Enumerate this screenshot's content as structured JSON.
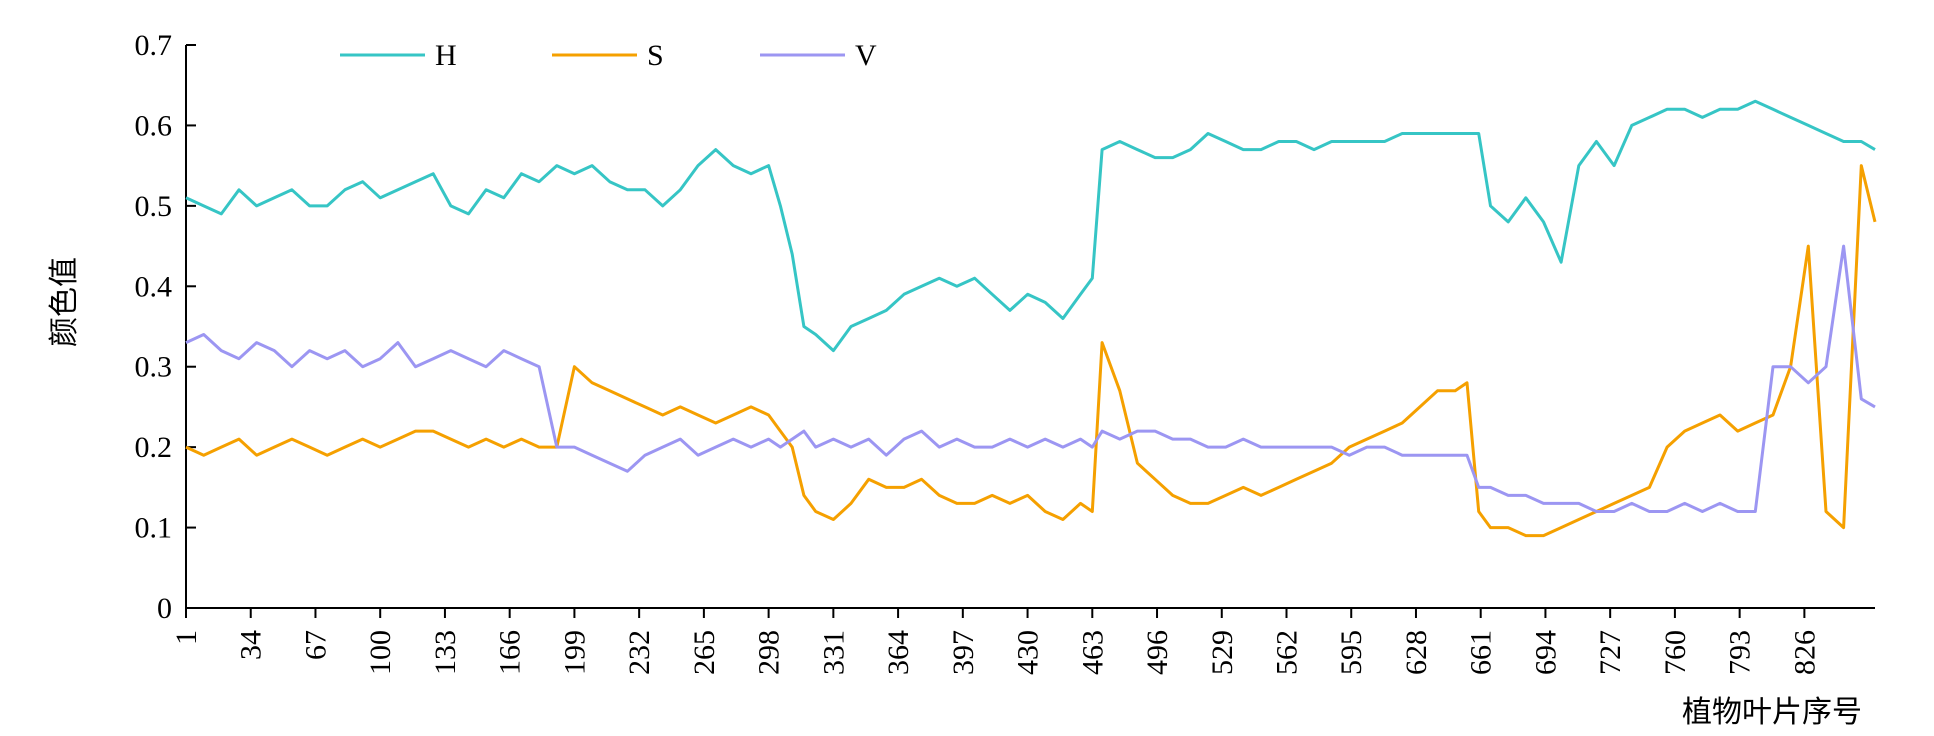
{
  "chart_data": {
    "type": "line",
    "title": "",
    "xlabel": "植物叶片序号",
    "ylabel": "颜色值",
    "ylim": [
      0,
      0.7
    ],
    "yticks": [
      "0",
      "0.1",
      "0.2",
      "0.3",
      "0.4",
      "0.5",
      "0.6",
      "0.7"
    ],
    "xlim": [
      1,
      862
    ],
    "xticks": [
      1,
      34,
      67,
      100,
      133,
      166,
      199,
      232,
      265,
      298,
      331,
      364,
      397,
      430,
      463,
      496,
      529,
      562,
      595,
      628,
      661,
      694,
      727,
      760,
      793,
      826
    ],
    "grid": false,
    "legend_position": "top-left",
    "series": [
      {
        "name": "H",
        "color": "#36C5C5",
        "x": [
          1,
          10,
          19,
          28,
          37,
          46,
          55,
          64,
          73,
          82,
          91,
          100,
          109,
          118,
          127,
          136,
          145,
          154,
          163,
          172,
          181,
          190,
          199,
          208,
          217,
          226,
          235,
          244,
          253,
          262,
          271,
          280,
          289,
          298,
          304,
          310,
          316,
          322,
          331,
          340,
          349,
          358,
          367,
          376,
          385,
          394,
          403,
          412,
          421,
          430,
          439,
          448,
          457,
          463,
          468,
          477,
          486,
          495,
          504,
          513,
          522,
          531,
          540,
          549,
          558,
          567,
          576,
          585,
          594,
          603,
          612,
          621,
          630,
          639,
          648,
          654,
          660,
          666,
          675,
          684,
          693,
          702,
          711,
          720,
          729,
          738,
          747,
          756,
          765,
          774,
          783,
          792,
          801,
          810,
          819,
          828,
          837,
          846,
          855,
          862
        ],
        "values": [
          0.51,
          0.5,
          0.49,
          0.52,
          0.5,
          0.51,
          0.52,
          0.5,
          0.5,
          0.52,
          0.53,
          0.51,
          0.52,
          0.53,
          0.54,
          0.5,
          0.49,
          0.52,
          0.51,
          0.54,
          0.53,
          0.55,
          0.54,
          0.55,
          0.53,
          0.52,
          0.52,
          0.5,
          0.52,
          0.55,
          0.57,
          0.55,
          0.54,
          0.55,
          0.5,
          0.44,
          0.35,
          0.34,
          0.32,
          0.35,
          0.36,
          0.37,
          0.39,
          0.4,
          0.41,
          0.4,
          0.41,
          0.39,
          0.37,
          0.39,
          0.38,
          0.36,
          0.39,
          0.41,
          0.57,
          0.58,
          0.57,
          0.56,
          0.56,
          0.57,
          0.59,
          0.58,
          0.57,
          0.57,
          0.58,
          0.58,
          0.57,
          0.58,
          0.58,
          0.58,
          0.58,
          0.59,
          0.59,
          0.59,
          0.59,
          0.59,
          0.59,
          0.5,
          0.48,
          0.51,
          0.48,
          0.43,
          0.55,
          0.58,
          0.55,
          0.6,
          0.61,
          0.62,
          0.62,
          0.61,
          0.62,
          0.62,
          0.63,
          0.62,
          0.61,
          0.6,
          0.59,
          0.58,
          0.58,
          0.57
        ]
      },
      {
        "name": "S",
        "color": "#F5A000",
        "x": [
          1,
          10,
          19,
          28,
          37,
          46,
          55,
          64,
          73,
          82,
          91,
          100,
          109,
          118,
          127,
          136,
          145,
          154,
          163,
          172,
          181,
          190,
          199,
          208,
          217,
          226,
          235,
          244,
          253,
          262,
          271,
          280,
          289,
          298,
          304,
          310,
          316,
          322,
          331,
          340,
          349,
          358,
          367,
          376,
          385,
          394,
          403,
          412,
          421,
          430,
          439,
          448,
          457,
          463,
          468,
          477,
          486,
          495,
          504,
          513,
          522,
          531,
          540,
          549,
          558,
          567,
          576,
          585,
          594,
          603,
          612,
          621,
          630,
          639,
          648,
          654,
          660,
          666,
          675,
          684,
          693,
          702,
          711,
          720,
          729,
          738,
          747,
          756,
          765,
          774,
          783,
          792,
          801,
          810,
          819,
          828,
          837,
          846,
          855,
          862
        ],
        "values": [
          0.2,
          0.19,
          0.2,
          0.21,
          0.19,
          0.2,
          0.21,
          0.2,
          0.19,
          0.2,
          0.21,
          0.2,
          0.21,
          0.22,
          0.22,
          0.21,
          0.2,
          0.21,
          0.2,
          0.21,
          0.2,
          0.2,
          0.3,
          0.28,
          0.27,
          0.26,
          0.25,
          0.24,
          0.25,
          0.24,
          0.23,
          0.24,
          0.25,
          0.24,
          0.22,
          0.2,
          0.14,
          0.12,
          0.11,
          0.13,
          0.16,
          0.15,
          0.15,
          0.16,
          0.14,
          0.13,
          0.13,
          0.14,
          0.13,
          0.14,
          0.12,
          0.11,
          0.13,
          0.12,
          0.33,
          0.27,
          0.18,
          0.16,
          0.14,
          0.13,
          0.13,
          0.14,
          0.15,
          0.14,
          0.15,
          0.16,
          0.17,
          0.18,
          0.2,
          0.21,
          0.22,
          0.23,
          0.25,
          0.27,
          0.27,
          0.28,
          0.12,
          0.1,
          0.1,
          0.09,
          0.09,
          0.1,
          0.11,
          0.12,
          0.13,
          0.14,
          0.15,
          0.2,
          0.22,
          0.23,
          0.24,
          0.22,
          0.23,
          0.24,
          0.3,
          0.45,
          0.12,
          0.1,
          0.55,
          0.48
        ]
      },
      {
        "name": "V",
        "color": "#9C96F2",
        "x": [
          1,
          10,
          19,
          28,
          37,
          46,
          55,
          64,
          73,
          82,
          91,
          100,
          109,
          118,
          127,
          136,
          145,
          154,
          163,
          172,
          181,
          190,
          199,
          208,
          217,
          226,
          235,
          244,
          253,
          262,
          271,
          280,
          289,
          298,
          304,
          310,
          316,
          322,
          331,
          340,
          349,
          358,
          367,
          376,
          385,
          394,
          403,
          412,
          421,
          430,
          439,
          448,
          457,
          463,
          468,
          477,
          486,
          495,
          504,
          513,
          522,
          531,
          540,
          549,
          558,
          567,
          576,
          585,
          594,
          603,
          612,
          621,
          630,
          639,
          648,
          654,
          660,
          666,
          675,
          684,
          693,
          702,
          711,
          720,
          729,
          738,
          747,
          756,
          765,
          774,
          783,
          792,
          801,
          810,
          819,
          828,
          837,
          846,
          855,
          862
        ],
        "values": [
          0.33,
          0.34,
          0.32,
          0.31,
          0.33,
          0.32,
          0.3,
          0.32,
          0.31,
          0.32,
          0.3,
          0.31,
          0.33,
          0.3,
          0.31,
          0.32,
          0.31,
          0.3,
          0.32,
          0.31,
          0.3,
          0.2,
          0.2,
          0.19,
          0.18,
          0.17,
          0.19,
          0.2,
          0.21,
          0.19,
          0.2,
          0.21,
          0.2,
          0.21,
          0.2,
          0.21,
          0.22,
          0.2,
          0.21,
          0.2,
          0.21,
          0.19,
          0.21,
          0.22,
          0.2,
          0.21,
          0.2,
          0.2,
          0.21,
          0.2,
          0.21,
          0.2,
          0.21,
          0.2,
          0.22,
          0.21,
          0.22,
          0.22,
          0.21,
          0.21,
          0.2,
          0.2,
          0.21,
          0.2,
          0.2,
          0.2,
          0.2,
          0.2,
          0.19,
          0.2,
          0.2,
          0.19,
          0.19,
          0.19,
          0.19,
          0.19,
          0.15,
          0.15,
          0.14,
          0.14,
          0.13,
          0.13,
          0.13,
          0.12,
          0.12,
          0.13,
          0.12,
          0.12,
          0.13,
          0.12,
          0.13,
          0.12,
          0.12,
          0.3,
          0.3,
          0.28,
          0.3,
          0.45,
          0.26,
          0.25
        ]
      }
    ]
  }
}
